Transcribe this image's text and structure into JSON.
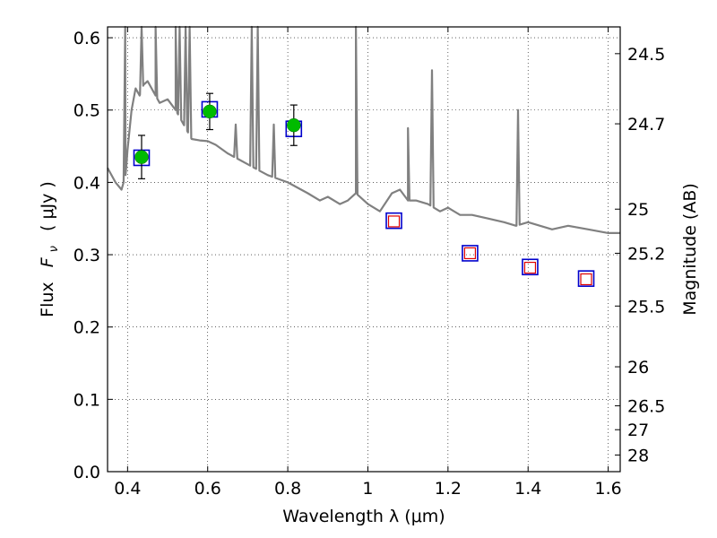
{
  "chart_data": {
    "type": "scatter",
    "xlabel": "Wavelength  λ (μm)",
    "ylabel": "Flux  F_ν  ( μJy )",
    "ylabel_parts": {
      "prefix": "Flux",
      "symbol": "F",
      "subscript": "ν",
      "unit": "( μJy )"
    },
    "y2label": "Magnitude (AB)",
    "xlim": [
      0.35,
      1.63
    ],
    "ylim": [
      0.0,
      0.615
    ],
    "grid": true,
    "x_ticks": [
      0.4,
      0.6,
      0.8,
      1.0,
      1.2,
      1.4,
      1.6
    ],
    "x_tick_labels": [
      "0.4",
      "0.6",
      "0.8",
      "1",
      "1.2",
      "1.4",
      "1.6"
    ],
    "y_ticks": [
      0.0,
      0.1,
      0.2,
      0.3,
      0.4,
      0.5,
      0.6
    ],
    "y_tick_labels": [
      "0.0",
      "0.1",
      "0.2",
      "0.3",
      "0.4",
      "0.5",
      "0.6"
    ],
    "y2_ticks": [
      {
        "label": "24.5",
        "flux": 0.578
      },
      {
        "label": "24.7",
        "flux": 0.481
      },
      {
        "label": "25",
        "flux": 0.363
      },
      {
        "label": "25.2",
        "flux": 0.302
      },
      {
        "label": "25.5",
        "flux": 0.229
      },
      {
        "label": "26",
        "flux": 0.145
      },
      {
        "label": "26.5",
        "flux": 0.091
      },
      {
        "label": "27",
        "flux": 0.058
      },
      {
        "label": "28",
        "flux": 0.023
      }
    ],
    "series": [
      {
        "marker": "green-circle",
        "x": [
          0.435,
          0.605,
          0.815
        ],
        "y": [
          0.435,
          0.498,
          0.479
        ],
        "yerr": [
          0.03,
          0.025,
          0.028
        ],
        "color": "#00bb00"
      },
      {
        "marker": "blue-open-square",
        "x": [
          0.435,
          0.605,
          0.815,
          1.065,
          1.255,
          1.405,
          1.545
        ],
        "y": [
          0.434,
          0.501,
          0.474,
          0.347,
          0.302,
          0.283,
          0.267
        ],
        "color": "#0000cc"
      },
      {
        "marker": "red-open-square-small",
        "x": [
          1.065,
          1.255,
          1.405,
          1.545
        ],
        "y": [
          0.346,
          0.302,
          0.282,
          0.266
        ],
        "color": "#dd0000"
      },
      {
        "marker": "gray-line",
        "color": "#808080",
        "x": [
          0.35,
          0.37,
          0.385,
          0.395,
          0.4,
          0.41,
          0.42,
          0.43,
          0.44,
          0.45,
          0.46,
          0.47,
          0.48,
          0.5,
          0.52,
          0.54,
          0.56,
          0.58,
          0.6,
          0.62,
          0.65,
          0.7,
          0.75,
          0.8,
          0.85,
          0.88,
          0.9,
          0.93,
          0.95,
          0.97,
          1.0,
          1.03,
          1.06,
          1.08,
          1.1,
          1.12,
          1.15,
          1.18,
          1.2,
          1.23,
          1.26,
          1.3,
          1.34,
          1.37,
          1.4,
          1.43,
          1.46,
          1.5,
          1.55,
          1.6,
          1.63
        ],
        "y": [
          0.42,
          0.4,
          0.39,
          0.41,
          0.445,
          0.5,
          0.53,
          0.52,
          0.535,
          0.54,
          0.53,
          0.52,
          0.51,
          0.515,
          0.5,
          0.48,
          0.46,
          0.458,
          0.457,
          0.452,
          0.44,
          0.425,
          0.41,
          0.4,
          0.385,
          0.375,
          0.38,
          0.37,
          0.375,
          0.385,
          0.37,
          0.36,
          0.385,
          0.39,
          0.375,
          0.375,
          0.37,
          0.36,
          0.365,
          0.355,
          0.355,
          0.35,
          0.345,
          0.34,
          0.345,
          0.34,
          0.335,
          0.34,
          0.335,
          0.33,
          0.33
        ],
        "emission_lines": [
          {
            "x": 0.394,
            "peak": 0.615
          },
          {
            "x": 0.435,
            "peak": 0.615
          },
          {
            "x": 0.47,
            "peak": 0.615
          },
          {
            "x": 0.52,
            "peak": 0.615
          },
          {
            "x": 0.53,
            "peak": 0.615
          },
          {
            "x": 0.545,
            "peak": 0.615
          },
          {
            "x": 0.555,
            "peak": 0.615
          },
          {
            "x": 0.67,
            "peak": 0.48
          },
          {
            "x": 0.71,
            "peak": 0.615
          },
          {
            "x": 0.725,
            "peak": 0.615
          },
          {
            "x": 0.765,
            "peak": 0.48
          },
          {
            "x": 0.97,
            "peak": 0.615
          },
          {
            "x": 1.1,
            "peak": 0.475
          },
          {
            "x": 1.16,
            "peak": 0.555
          },
          {
            "x": 1.375,
            "peak": 0.5
          }
        ]
      }
    ]
  }
}
